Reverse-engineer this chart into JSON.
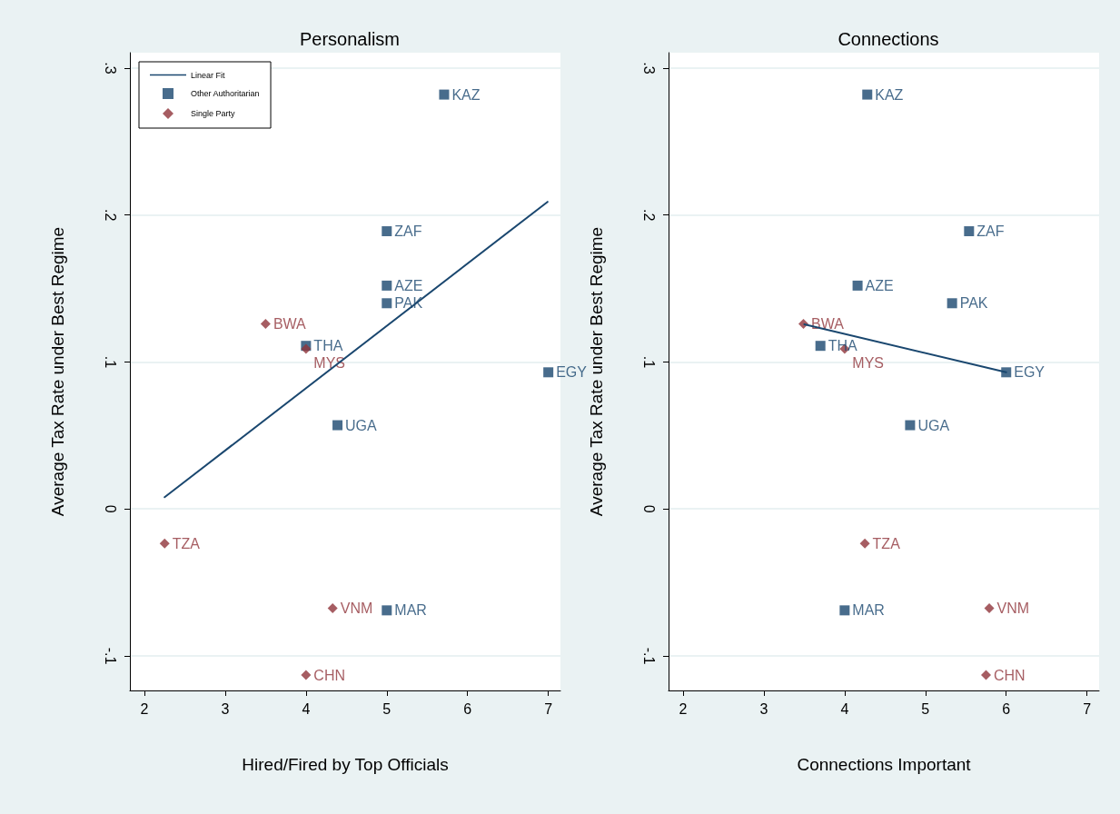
{
  "chart_data": [
    {
      "type": "scatter",
      "title": "Personalism",
      "xlabel": "Hired/Fired by Top Officials",
      "ylabel": "Average Tax Rate under Best Regime",
      "xlim": [
        1.82,
        7.15
      ],
      "xticks": [
        2,
        3,
        4,
        5,
        6,
        7
      ],
      "ylim": [
        -0.1235,
        0.3105
      ],
      "yticks": [
        {
          "value": -0.1,
          "label": "-.1"
        },
        0,
        {
          "value": 0.1,
          "label": ".1"
        },
        {
          "value": 0.2,
          "label": ".2"
        },
        {
          "value": 0.3,
          "label": ".3"
        }
      ],
      "grid": "y",
      "legend": "top left",
      "series": [
        {
          "type": "line",
          "name": "Linear Fit",
          "color": "#1a476f",
          "marker": "none",
          "line_style": "solid",
          "x": [
            2.25,
            6.99
          ],
          "values": [
            0.008,
            0.209
          ]
        },
        {
          "type": "scatter",
          "name": "Other Authoritarian",
          "color": "#1a476f",
          "marker": "square",
          "x": [
            5.71,
            5,
            5,
            5,
            4,
            4.39,
            7,
            5
          ],
          "values": [
            0.282,
            0.189,
            0.152,
            0.14,
            0.111,
            0.057,
            0.093,
            -0.069
          ],
          "value_labels": [
            "KAZ",
            "ZAF",
            "AZE",
            "PAK",
            "THA",
            "UGA",
            "EGY",
            "MAR"
          ]
        },
        {
          "type": "scatter",
          "name": "Single Party",
          "color": "#90353b",
          "marker": "diamond",
          "x": [
            3.5,
            4,
            2.25,
            4.33,
            4
          ],
          "values": [
            0.126,
            0.109,
            -0.0235,
            -0.0675,
            -0.113
          ],
          "value_labels": [
            "BWA",
            "MYS",
            "TZA",
            "VNM",
            "CHN"
          ]
        }
      ]
    },
    {
      "type": "scatter",
      "title": "Connections",
      "xlabel": "Connections Important",
      "ylabel": "Average Tax Rate under Best Regime",
      "xlim": [
        1.82,
        7.15
      ],
      "xticks": [
        2,
        3,
        4,
        5,
        6,
        7
      ],
      "ylim": [
        -0.1235,
        0.3105
      ],
      "yticks": [
        {
          "value": -0.1,
          "label": "-.1"
        },
        0,
        {
          "value": 0.1,
          "label": ".1"
        },
        {
          "value": 0.2,
          "label": ".2"
        },
        {
          "value": 0.3,
          "label": ".3"
        }
      ],
      "grid": "y",
      "series": [
        {
          "type": "line",
          "color": "#1a476f",
          "marker": "none",
          "line_style": "solid",
          "x": [
            3.5,
            6
          ],
          "values": [
            0.1257,
            0.093
          ]
        },
        {
          "type": "scatter",
          "color": "#1a476f",
          "marker": "square",
          "x": [
            4.28,
            5.54,
            4.16,
            5.33,
            3.7,
            4.81,
            6,
            4
          ],
          "values": [
            0.282,
            0.189,
            0.152,
            0.14,
            0.111,
            0.057,
            0.093,
            -0.069
          ],
          "value_labels": [
            "KAZ",
            "ZAF",
            "AZE",
            "PAK",
            "THA",
            "UGA",
            "EGY",
            "MAR"
          ]
        },
        {
          "type": "scatter",
          "color": "#90353b",
          "marker": "diamond",
          "x": [
            3.49,
            4,
            4.25,
            5.79,
            5.75
          ],
          "values": [
            0.126,
            0.109,
            -0.0235,
            -0.0675,
            -0.113
          ],
          "value_labels": [
            "BWA",
            "MYS",
            "TZA",
            "VNM",
            "CHN"
          ]
        }
      ]
    }
  ]
}
